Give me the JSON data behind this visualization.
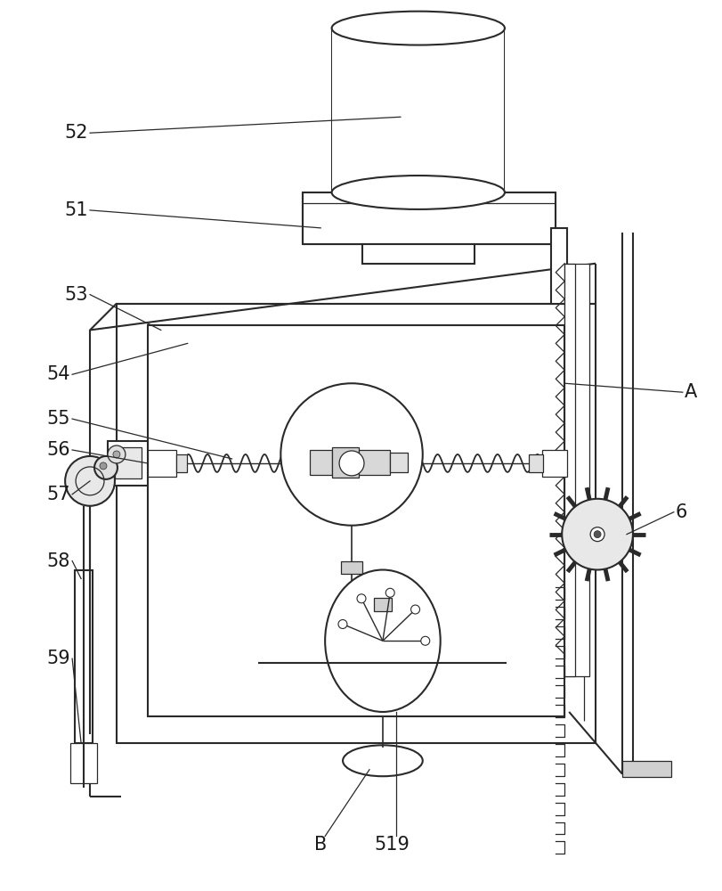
{
  "bg_color": "#ffffff",
  "lc": "#2a2a2a",
  "lw": 1.5,
  "tlw": 0.9,
  "figsize": [
    8.11,
    10.0
  ],
  "dpi": 100,
  "label_fontsize": 15
}
